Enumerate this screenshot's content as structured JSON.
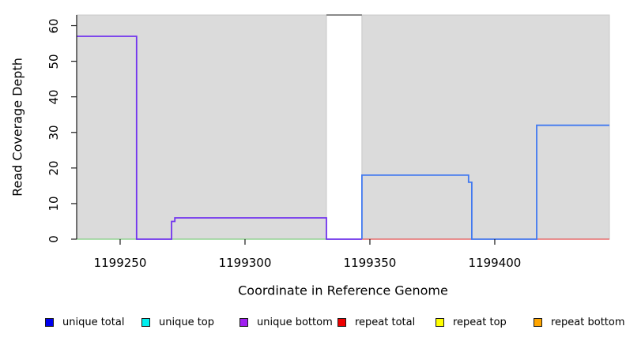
{
  "figure": {
    "y_axis_label": "Read Coverage Depth",
    "x_axis_label": "Coordinate in Reference Genome"
  },
  "legend": {
    "items": [
      {
        "label": "unique total",
        "color": "#0000EE"
      },
      {
        "label": "unique top",
        "color": "#00EEEE"
      },
      {
        "label": "unique bottom",
        "color": "#A020F0"
      },
      {
        "label": "repeat total",
        "color": "#EE0000"
      },
      {
        "label": "repeat top",
        "color": "#FFFF00"
      },
      {
        "label": "repeat bottom",
        "color": "#FFA500"
      }
    ]
  },
  "chart_data": {
    "type": "line",
    "subtype": "step-coverage",
    "title": "",
    "xlabel": "Coordinate in Reference Genome",
    "ylabel": "Read Coverage Depth",
    "xlim": [
      1199232.6,
      1199445.9
    ],
    "ylim": [
      0,
      63
    ],
    "x_ticks": [
      1199250,
      1199300,
      1199350,
      1199400
    ],
    "y_ticks": [
      0,
      10,
      20,
      30,
      40,
      50,
      60
    ],
    "grid": false,
    "legend_position": "bottom",
    "background": {
      "plot_fill": "#DBDBDB",
      "plot_edge": "#C9C9C9",
      "white_gap_x": [
        1199332.6,
        1199346.8
      ]
    },
    "axis_color": "#1a1a1a",
    "series": [
      {
        "name": "strand overlap baseline (unique top + repeat top)",
        "color": "#7FCC7F",
        "width": 1.3,
        "points": [
          [
            1199232.6,
            0
          ],
          [
            1199346.8,
            0
          ]
        ]
      },
      {
        "name": "repeat total",
        "color": "#E34F4F",
        "width": 1.3,
        "points": [
          [
            1199346.8,
            0
          ],
          [
            1199445.9,
            0
          ]
        ]
      },
      {
        "name": "unique bottom",
        "color": "#7133EE",
        "width": 1.8,
        "points": [
          [
            1199232.6,
            57
          ],
          [
            1199256.6,
            57
          ],
          [
            1199256.6,
            0
          ],
          [
            1199270.6,
            0
          ],
          [
            1199270.6,
            5
          ],
          [
            1199271.9,
            5
          ],
          [
            1199271.9,
            6
          ],
          [
            1199332.6,
            6
          ],
          [
            1199332.6,
            0
          ],
          [
            1199346.8,
            0
          ]
        ]
      },
      {
        "name": "unique total",
        "color": "#4179F0",
        "width": 1.8,
        "points": [
          [
            1199346.8,
            0
          ],
          [
            1199346.8,
            18
          ],
          [
            1199389.5,
            18
          ],
          [
            1199389.5,
            16
          ],
          [
            1199390.8,
            16
          ],
          [
            1199390.8,
            0
          ],
          [
            1199416.8,
            0
          ],
          [
            1199416.8,
            32
          ],
          [
            1199445.9,
            32
          ]
        ]
      },
      {
        "name": "off-scale coverage segment over gap",
        "color": "#8A8A8A",
        "width": 2,
        "points": [
          [
            1199332.6,
            63
          ],
          [
            1199346.8,
            63
          ]
        ]
      }
    ]
  }
}
